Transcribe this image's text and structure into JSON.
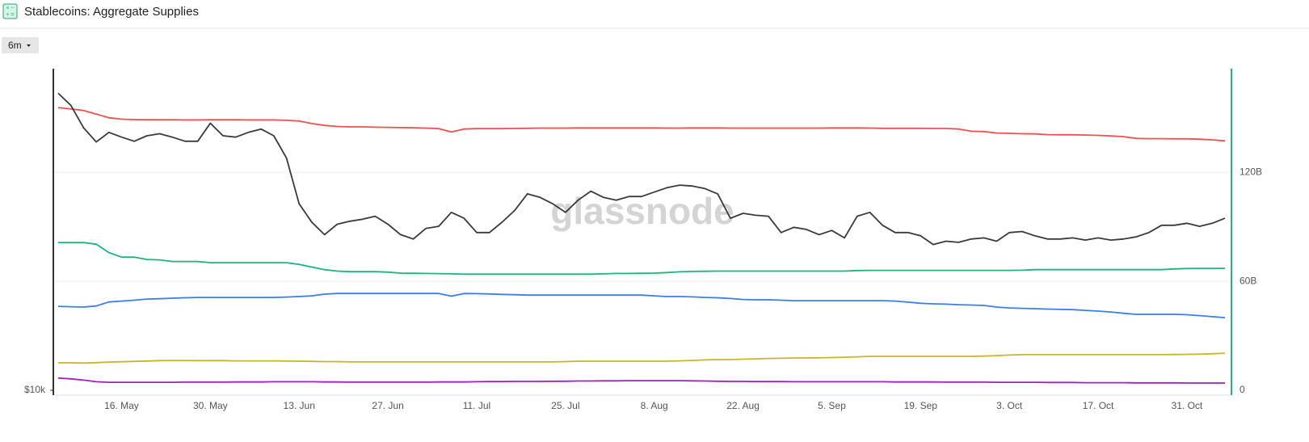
{
  "chart_data": {
    "type": "line",
    "title": "Stablecoins: Aggregate Supplies",
    "range_button": "6m",
    "watermark": "glassnode",
    "categories": [
      null,
      null,
      null,
      null,
      null,
      "16. May",
      null,
      null,
      null,
      null,
      null,
      null,
      "30. May",
      null,
      null,
      null,
      null,
      null,
      null,
      "13. Jun",
      null,
      null,
      null,
      null,
      null,
      null,
      "27. Jun",
      null,
      null,
      null,
      null,
      null,
      null,
      "11. Jul",
      null,
      null,
      null,
      null,
      null,
      null,
      "25. Jul",
      null,
      null,
      null,
      null,
      null,
      null,
      "8. Aug",
      null,
      null,
      null,
      null,
      null,
      null,
      "22. Aug",
      null,
      null,
      null,
      null,
      null,
      null,
      "5. Sep",
      null,
      null,
      null,
      null,
      null,
      null,
      "19. Sep",
      null,
      null,
      null,
      null,
      null,
      null,
      "3. Oct",
      null,
      null,
      null,
      null,
      null,
      null,
      "17. Oct",
      null,
      null,
      null,
      null,
      null,
      null,
      "31. Oct",
      null,
      null,
      null
    ],
    "yscale": "log",
    "ylim": [
      10000,
      43650
    ],
    "yticks": [
      {
        "value": 10000,
        "label": "$10k"
      }
    ],
    "y2lim": [
      0,
      177
    ],
    "y2ticks": [
      0,
      {
        "value": 60,
        "label": "60B"
      },
      {
        "value": 120,
        "label": "120B"
      }
    ],
    "grid": true,
    "series": [
      {
        "color": "#f0504f",
        "axis": "y2",
        "values": [
          155.6,
          154.8,
          154.0,
          152.0,
          150.0,
          149.2,
          149.0,
          148.9,
          148.9,
          148.9,
          148.8,
          148.8,
          148.9,
          148.9,
          148.9,
          148.8,
          148.8,
          148.8,
          148.6,
          148.2,
          146.8,
          145.8,
          145.2,
          145.0,
          145.0,
          144.8,
          144.7,
          144.6,
          144.5,
          144.3,
          144.0,
          142.2,
          143.8,
          144.0,
          144.0,
          144.0,
          144.1,
          144.2,
          144.3,
          144.3,
          144.3,
          144.4,
          144.4,
          144.4,
          144.4,
          144.4,
          144.4,
          144.4,
          144.3,
          144.3,
          144.4,
          144.4,
          144.4,
          144.3,
          144.3,
          144.3,
          144.3,
          144.3,
          144.3,
          144.3,
          144.3,
          144.4,
          144.4,
          144.4,
          144.3,
          144.2,
          144.2,
          144.2,
          144.2,
          144.1,
          144.1,
          143.8,
          142.6,
          142.4,
          141.6,
          141.4,
          141.2,
          141.1,
          140.7,
          140.6,
          140.6,
          140.5,
          140.3,
          140.0,
          139.6,
          138.6,
          138.5,
          138.5,
          138.4,
          138.4,
          138.2,
          137.8,
          137.3
        ]
      },
      {
        "color": "#1db57b",
        "axis": "y2",
        "values": [
          81.3,
          81.3,
          81.3,
          80.4,
          75.8,
          73.3,
          73.3,
          72.0,
          71.8,
          70.9,
          70.9,
          70.9,
          70.2,
          70.2,
          70.2,
          70.2,
          70.2,
          70.2,
          70.2,
          69.3,
          67.8,
          66.4,
          65.6,
          65.3,
          65.3,
          65.3,
          65.0,
          64.5,
          64.4,
          64.3,
          64.2,
          64.1,
          63.9,
          63.9,
          63.9,
          63.9,
          63.9,
          63.9,
          63.9,
          63.9,
          63.9,
          63.9,
          63.9,
          64.1,
          64.3,
          64.3,
          64.4,
          64.5,
          64.8,
          65.2,
          65.4,
          65.5,
          65.6,
          65.6,
          65.6,
          65.6,
          65.6,
          65.6,
          65.6,
          65.6,
          65.6,
          65.6,
          65.6,
          65.9,
          66.0,
          66.0,
          66.0,
          66.0,
          66.0,
          66.0,
          66.0,
          66.0,
          66.0,
          66.0,
          66.0,
          66.0,
          66.1,
          66.4,
          66.4,
          66.4,
          66.4,
          66.4,
          66.4,
          66.4,
          66.4,
          66.4,
          66.4,
          66.4,
          66.8,
          67.0,
          67.1,
          67.1,
          67.1
        ]
      },
      {
        "color": "#3b7de9",
        "axis": "y2",
        "values": [
          46.2,
          46.0,
          45.8,
          46.4,
          48.6,
          49.1,
          49.6,
          50.2,
          50.4,
          50.7,
          50.9,
          51.1,
          51.1,
          51.1,
          51.1,
          51.1,
          51.1,
          51.1,
          51.3,
          51.6,
          52.0,
          52.9,
          53.3,
          53.3,
          53.3,
          53.3,
          53.3,
          53.3,
          53.3,
          53.3,
          53.3,
          51.8,
          53.3,
          53.2,
          53.0,
          52.8,
          52.6,
          52.4,
          52.4,
          52.4,
          52.4,
          52.4,
          52.4,
          52.4,
          52.4,
          52.4,
          52.4,
          52.0,
          51.6,
          51.6,
          51.4,
          51.1,
          50.9,
          50.5,
          50.0,
          49.8,
          49.8,
          49.6,
          49.3,
          49.3,
          49.3,
          49.3,
          49.3,
          49.3,
          49.3,
          49.3,
          49.1,
          48.5,
          47.9,
          47.6,
          47.4,
          47.1,
          46.9,
          46.7,
          45.8,
          45.3,
          45.1,
          44.9,
          44.7,
          44.5,
          44.4,
          44.0,
          43.6,
          43.1,
          42.4,
          41.8,
          41.8,
          41.8,
          41.8,
          41.6,
          41.1,
          40.5,
          40.0
        ]
      },
      {
        "color": "#c8b52a",
        "axis": "y2",
        "values": [
          15.1,
          15.1,
          15.0,
          15.2,
          15.5,
          15.7,
          15.9,
          16.1,
          16.3,
          16.4,
          16.4,
          16.3,
          16.3,
          16.3,
          16.2,
          16.2,
          16.2,
          16.2,
          16.1,
          16.0,
          15.9,
          15.8,
          15.8,
          15.6,
          15.6,
          15.6,
          15.6,
          15.6,
          15.6,
          15.6,
          15.6,
          15.6,
          15.6,
          15.6,
          15.6,
          15.6,
          15.6,
          15.6,
          15.6,
          15.6,
          15.8,
          16.0,
          16.0,
          16.0,
          16.0,
          16.0,
          16.0,
          16.0,
          16.0,
          16.2,
          16.4,
          16.7,
          16.9,
          16.9,
          17.1,
          17.3,
          17.5,
          17.6,
          17.8,
          17.8,
          17.9,
          18.0,
          18.2,
          18.4,
          18.7,
          18.7,
          18.7,
          18.7,
          18.7,
          18.7,
          18.7,
          18.7,
          18.7,
          18.8,
          19.1,
          19.4,
          19.6,
          19.6,
          19.6,
          19.6,
          19.6,
          19.6,
          19.6,
          19.6,
          19.6,
          19.6,
          19.6,
          19.6,
          19.7,
          19.8,
          19.9,
          20.1,
          20.4
        ]
      },
      {
        "color": "#a21fc2",
        "axis": "y2",
        "values": [
          6.7,
          6.3,
          5.6,
          4.7,
          4.4,
          4.4,
          4.4,
          4.4,
          4.4,
          4.4,
          4.5,
          4.5,
          4.5,
          4.5,
          4.6,
          4.6,
          4.6,
          4.7,
          4.7,
          4.7,
          4.7,
          4.6,
          4.6,
          4.5,
          4.5,
          4.5,
          4.5,
          4.5,
          4.5,
          4.5,
          4.6,
          4.6,
          4.6,
          4.7,
          4.8,
          4.8,
          4.9,
          4.9,
          4.9,
          5.0,
          5.0,
          5.1,
          5.1,
          5.2,
          5.2,
          5.3,
          5.3,
          5.3,
          5.3,
          5.3,
          5.2,
          5.1,
          5.0,
          4.9,
          4.9,
          4.8,
          4.8,
          4.8,
          4.7,
          4.7,
          4.7,
          4.7,
          4.7,
          4.7,
          4.7,
          4.7,
          4.6,
          4.6,
          4.6,
          4.6,
          4.5,
          4.5,
          4.5,
          4.5,
          4.4,
          4.4,
          4.4,
          4.4,
          4.3,
          4.3,
          4.3,
          4.2,
          4.2,
          4.2,
          4.2,
          4.1,
          4.1,
          4.1,
          4.1,
          4.0,
          4.0,
          4.0,
          4.0
        ]
      },
      {
        "color": "#3a3a3a",
        "axis": "y",
        "values": [
          39000,
          36900,
          33300,
          31200,
          32600,
          31900,
          31300,
          32100,
          32400,
          31900,
          31300,
          31300,
          34000,
          32100,
          31900,
          32600,
          33100,
          32100,
          29000,
          23500,
          21600,
          20400,
          21400,
          21700,
          21900,
          22200,
          21400,
          20400,
          20000,
          21000,
          21200,
          22600,
          22000,
          20600,
          20600,
          21600,
          22800,
          24600,
          24200,
          23500,
          22600,
          23900,
          24900,
          24200,
          23900,
          24300,
          24300,
          24800,
          25300,
          25600,
          25500,
          25200,
          24600,
          22000,
          22500,
          22300,
          22200,
          20600,
          21100,
          20900,
          20400,
          20800,
          20100,
          22200,
          22600,
          21300,
          20600,
          20600,
          20300,
          19500,
          19800,
          19700,
          20000,
          20100,
          19800,
          20600,
          20700,
          20300,
          20000,
          20000,
          20100,
          19900,
          20100,
          19900,
          20000,
          20200,
          20600,
          21300,
          21300,
          21500,
          21200,
          21500,
          22000
        ]
      }
    ]
  }
}
